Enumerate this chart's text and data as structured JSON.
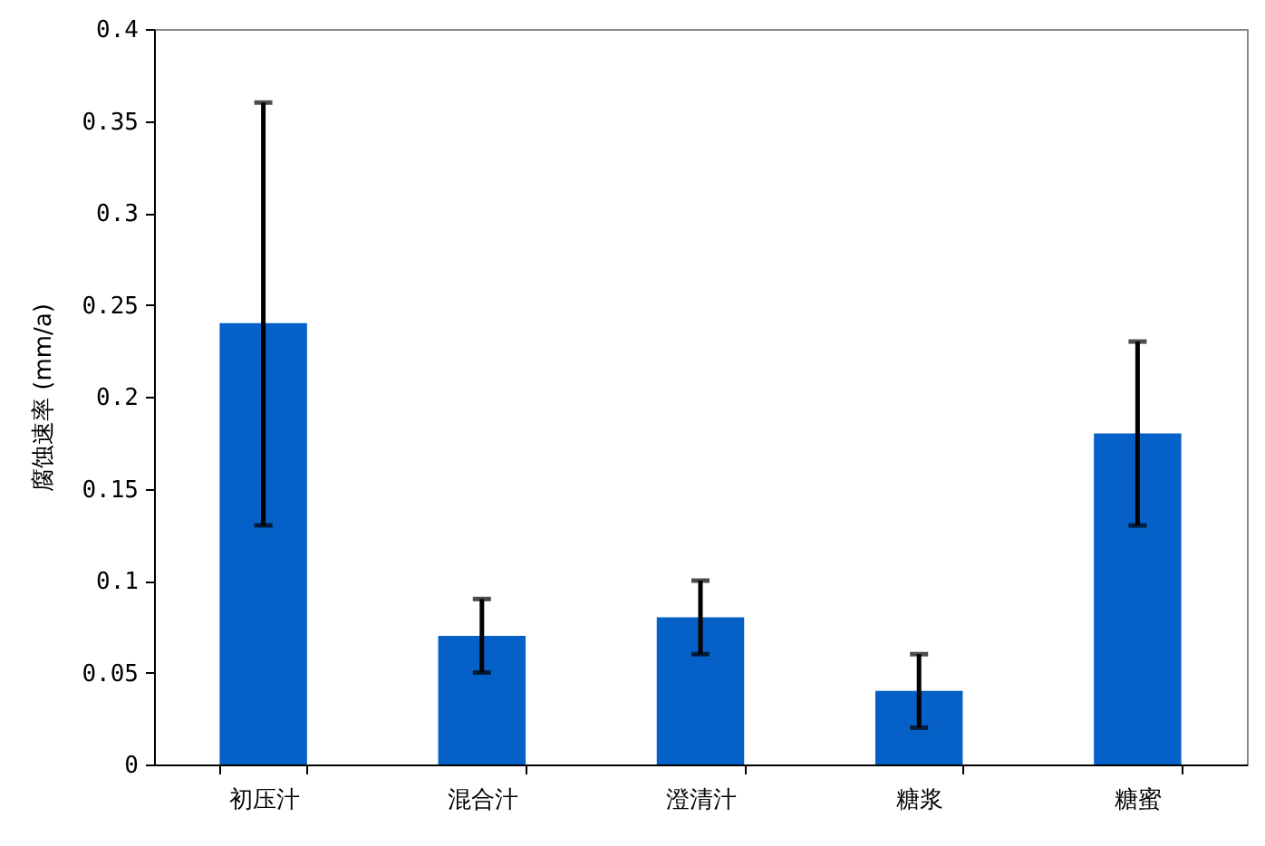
{
  "chart_data": {
    "type": "bar",
    "ylabel": "腐蚀速率 (mm/a)",
    "categories": [
      "初压汁",
      "混合汁",
      "澄清汁",
      "糖浆",
      "糖蜜"
    ],
    "values": [
      0.24,
      0.07,
      0.08,
      0.04,
      0.18
    ],
    "errors": [
      [
        0.13,
        0.36
      ],
      [
        0.05,
        0.09
      ],
      [
        0.06,
        0.1
      ],
      [
        0.02,
        0.06
      ],
      [
        0.13,
        0.23
      ]
    ],
    "color": "#0561c8",
    "ylim": [
      0,
      0.4
    ],
    "yticks": [
      0,
      0.05,
      0.1,
      0.15,
      0.2,
      0.25,
      0.3,
      0.35,
      0.4
    ],
    "grid": false
  }
}
